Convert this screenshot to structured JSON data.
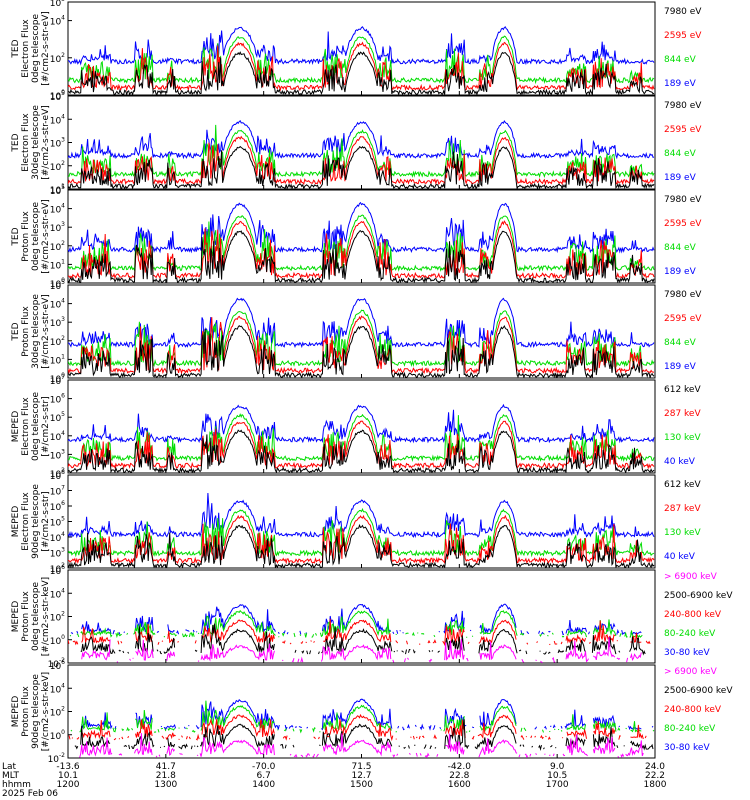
{
  "figure": {
    "date_label": "2025 Feb 06",
    "footer_rows": [
      {
        "name": "Lat",
        "values": [
          "-13.6",
          "41.7",
          "-70.0",
          "71.5",
          "-42.0",
          "9.0",
          "24.0"
        ]
      },
      {
        "name": "MLT",
        "values": [
          "10.1",
          "21.8",
          "6.7",
          "12.7",
          "22.8",
          "10.5",
          "22.2"
        ]
      },
      {
        "name": "hhmm",
        "values": [
          "1200",
          "1300",
          "1400",
          "1500",
          "1600",
          "1700",
          "1800"
        ]
      }
    ],
    "x_tick_minutes": [
      0,
      60,
      120,
      180,
      240,
      300,
      360
    ]
  },
  "chart_data": [
    {
      "type": "line",
      "panel": "TED electron 0deg",
      "ylabel": [
        "TED",
        "Electron Flux",
        "0deg telescope",
        "[#/cm2-s-str-eV]"
      ],
      "ylim": [
        1,
        100000
      ],
      "y_ticks": [
        {
          "base": "10",
          "exp": "0"
        },
        {
          "base": "10",
          "exp": "2"
        },
        {
          "base": "10",
          "exp": "4"
        },
        {
          "base": "10",
          "exp": "5"
        }
      ],
      "series": [
        {
          "name": "7980 eV",
          "color": "#000000"
        },
        {
          "name": "2595 eV",
          "color": "#ff0000"
        },
        {
          "name": "844 eV",
          "color": "#00dd00"
        },
        {
          "name": "189 eV",
          "color": "#0000ff"
        }
      ]
    },
    {
      "type": "line",
      "panel": "TED electron 30deg",
      "ylabel": [
        "TED",
        "Electron Flux",
        "30deg telescope",
        "[#/cm2-s-str-eV]"
      ],
      "ylim": [
        10,
        100000
      ],
      "y_ticks": [
        {
          "base": "10",
          "exp": "1"
        },
        {
          "base": "10",
          "exp": "2"
        },
        {
          "base": "10",
          "exp": "3"
        },
        {
          "base": "10",
          "exp": "4"
        },
        {
          "base": "10",
          "exp": "5"
        }
      ],
      "series": [
        {
          "name": "7980 eV",
          "color": "#000000"
        },
        {
          "name": "2595 eV",
          "color": "#ff0000"
        },
        {
          "name": "844 eV",
          "color": "#00dd00"
        },
        {
          "name": "189 eV",
          "color": "#0000ff"
        }
      ]
    },
    {
      "type": "line",
      "panel": "TED proton 0deg",
      "ylabel": [
        "TED",
        "Proton Flux",
        "0deg telescope",
        "[#/cm2-s-str-eV]"
      ],
      "ylim": [
        1,
        100000
      ],
      "y_ticks": [
        {
          "base": "10",
          "exp": "0"
        },
        {
          "base": "10",
          "exp": "1"
        },
        {
          "base": "10",
          "exp": "2"
        },
        {
          "base": "10",
          "exp": "3"
        },
        {
          "base": "10",
          "exp": "4"
        },
        {
          "base": "10",
          "exp": "5"
        }
      ],
      "series": [
        {
          "name": "7980 eV",
          "color": "#000000"
        },
        {
          "name": "2595 eV",
          "color": "#ff0000"
        },
        {
          "name": "844 eV",
          "color": "#00dd00"
        },
        {
          "name": "189 eV",
          "color": "#0000ff"
        }
      ]
    },
    {
      "type": "line",
      "panel": "TED proton 30deg",
      "ylabel": [
        "TED",
        "Proton Flux",
        "30deg telescope",
        "[#/cm2-s-str-eV]"
      ],
      "ylim": [
        1,
        100000
      ],
      "y_ticks": [
        {
          "base": "10",
          "exp": "0"
        },
        {
          "base": "10",
          "exp": "1"
        },
        {
          "base": "10",
          "exp": "2"
        },
        {
          "base": "10",
          "exp": "3"
        },
        {
          "base": "10",
          "exp": "4"
        },
        {
          "base": "10",
          "exp": "5"
        }
      ],
      "series": [
        {
          "name": "7980 eV",
          "color": "#000000"
        },
        {
          "name": "2595 eV",
          "color": "#ff0000"
        },
        {
          "name": "844 eV",
          "color": "#00dd00"
        },
        {
          "name": "189 eV",
          "color": "#0000ff"
        }
      ]
    },
    {
      "type": "line",
      "panel": "MEPED electron 0deg",
      "ylabel": [
        "MEPED",
        "Electron Flux",
        "0deg telescope",
        "[#/cm2-s-str]"
      ],
      "ylim": [
        100,
        10000000
      ],
      "y_ticks": [
        {
          "base": "10",
          "exp": "2"
        },
        {
          "base": "10",
          "exp": "3"
        },
        {
          "base": "10",
          "exp": "4"
        },
        {
          "base": "10",
          "exp": "5"
        },
        {
          "base": "10",
          "exp": "6"
        },
        {
          "base": "10",
          "exp": "7"
        }
      ],
      "series": [
        {
          "name": "612 keV",
          "color": "#000000"
        },
        {
          "name": "287 keV",
          "color": "#ff0000"
        },
        {
          "name": "130 keV",
          "color": "#00dd00"
        },
        {
          "name": "40 keV",
          "color": "#0000ff"
        }
      ]
    },
    {
      "type": "line",
      "panel": "MEPED electron 90deg",
      "ylabel": [
        "MEPED",
        "Electron Flux",
        "90deg telescope",
        "[#/cm2-s-str]"
      ],
      "ylim": [
        100,
        100000000
      ],
      "y_ticks": [
        {
          "base": "10",
          "exp": "2"
        },
        {
          "base": "10",
          "exp": "3"
        },
        {
          "base": "10",
          "exp": "4"
        },
        {
          "base": "10",
          "exp": "5"
        },
        {
          "base": "10",
          "exp": "6"
        },
        {
          "base": "10",
          "exp": "7"
        },
        {
          "base": "10",
          "exp": "8"
        }
      ],
      "series": [
        {
          "name": "612 keV",
          "color": "#000000"
        },
        {
          "name": "287 keV",
          "color": "#ff0000"
        },
        {
          "name": "130 keV",
          "color": "#00dd00"
        },
        {
          "name": "40 keV",
          "color": "#0000ff"
        }
      ]
    },
    {
      "type": "line",
      "panel": "MEPED proton 0deg",
      "ylabel": [
        "MEPED",
        "Proton Flux",
        "0deg telescope",
        "[#/cm2-s-str-keV]"
      ],
      "ylim": [
        0.01,
        1000000
      ],
      "y_ticks": [
        {
          "base": "10",
          "exp": "-2"
        },
        {
          "base": "10",
          "exp": "0"
        },
        {
          "base": "10",
          "exp": "2"
        },
        {
          "base": "10",
          "exp": "4"
        },
        {
          "base": "10",
          "exp": "6"
        }
      ],
      "series": [
        {
          "name": "> 6900 keV",
          "color": "#ff00ff"
        },
        {
          "name": "2500-6900 keV",
          "color": "#000000"
        },
        {
          "name": "240-800 keV",
          "color": "#ff0000"
        },
        {
          "name": "80-240 keV",
          "color": "#00dd00"
        },
        {
          "name": "30-80 keV",
          "color": "#0000ff"
        }
      ]
    },
    {
      "type": "line",
      "panel": "MEPED proton 90deg",
      "ylabel": [
        "MEPED",
        "Proton Flux",
        "90deg telescope",
        "[#/cm2-s-str-keV]"
      ],
      "ylim": [
        0.01,
        1000000
      ],
      "y_ticks": [
        {
          "base": "10",
          "exp": "-2"
        },
        {
          "base": "10",
          "exp": "0"
        },
        {
          "base": "10",
          "exp": "2"
        },
        {
          "base": "10",
          "exp": "4"
        },
        {
          "base": "10",
          "exp": "6"
        }
      ],
      "series": [
        {
          "name": "> 6900 keV",
          "color": "#ff00ff"
        },
        {
          "name": "2500-6900 keV",
          "color": "#000000"
        },
        {
          "name": "240-800 keV",
          "color": "#ff0000"
        },
        {
          "name": "80-240 keV",
          "color": "#00dd00"
        },
        {
          "name": "30-80 keV",
          "color": "#0000ff"
        }
      ]
    }
  ]
}
